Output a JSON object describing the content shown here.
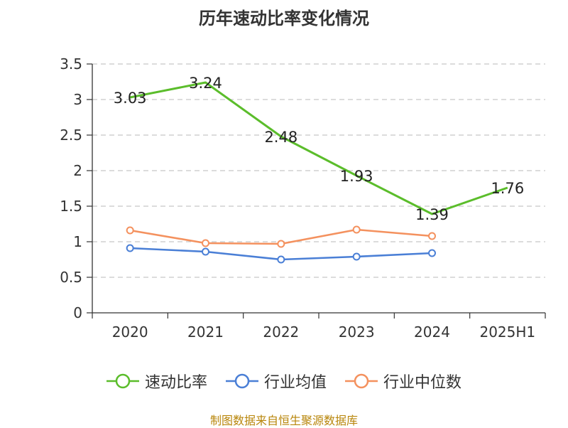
{
  "chart_data": {
    "type": "line",
    "title": "历年速动比率变化情况",
    "categories": [
      "2020",
      "2021",
      "2022",
      "2023",
      "2024",
      "2025H1"
    ],
    "ylim": [
      0,
      3.5
    ],
    "yticks": [
      "0",
      "0.5",
      "1",
      "1.5",
      "2",
      "2.5",
      "3",
      "3.5"
    ],
    "grid": "horizontal-dashed",
    "legend_position": "bottom",
    "series": [
      {
        "name": "速动比率",
        "color": "#5bbd2b",
        "values": [
          3.03,
          3.24,
          2.48,
          1.93,
          1.39,
          1.76
        ],
        "labels": [
          "3.03",
          "3.24",
          "2.48",
          "1.93",
          "1.39",
          "1.76"
        ]
      },
      {
        "name": "行业均值",
        "color": "#4a7fd6",
        "values": [
          0.91,
          0.86,
          0.75,
          0.79,
          0.84,
          null
        ]
      },
      {
        "name": "行业中位数",
        "color": "#f4915e",
        "values": [
          1.16,
          0.98,
          0.97,
          1.17,
          1.08,
          null
        ]
      }
    ]
  },
  "footer": {
    "source": "制图数据来自恒生聚源数据库"
  }
}
